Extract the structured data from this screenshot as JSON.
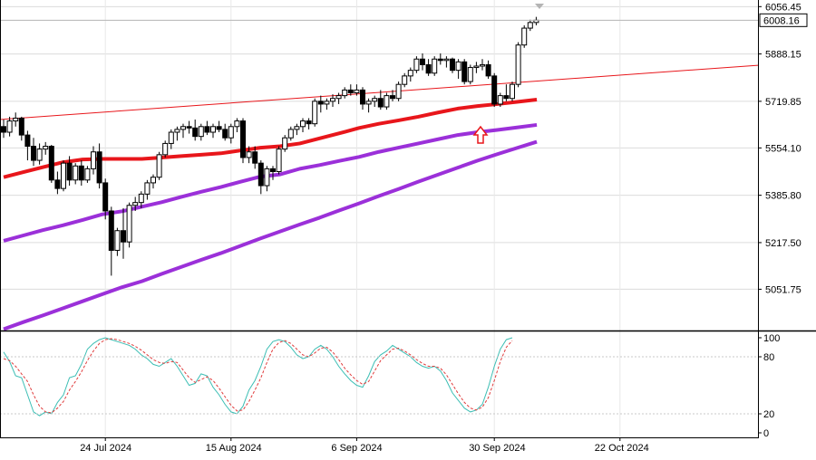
{
  "chart_data": [
    {
      "type": "candlestick",
      "ylim": [
        4905,
        6080
      ],
      "y_ticks": [
        "6056.45",
        "5888.15",
        "5719.85",
        "5554.10",
        "5385.80",
        "5217.50",
        "5051.75"
      ],
      "y_tick_values": [
        6056.45,
        5888.15,
        5719.85,
        5554.1,
        5385.8,
        5217.5,
        5051.75
      ],
      "current_price_label": "6008.16",
      "current_price": 6008.16,
      "x_labels": [
        "24 Jul 2024",
        "15 Aug 2024",
        "6 Sep 2024",
        "30 Sep 2024",
        "22 Oct 2024"
      ],
      "x_label_bar_index": [
        17,
        38,
        59,
        82,
        103
      ],
      "candles_ohlc": [
        [
          5630,
          5655,
          5590,
          5610
        ],
        [
          5610,
          5665,
          5595,
          5650
        ],
        [
          5650,
          5680,
          5630,
          5660
        ],
        [
          5660,
          5665,
          5580,
          5600
        ],
        [
          5600,
          5615,
          5510,
          5560
        ],
        [
          5560,
          5590,
          5490,
          5510
        ],
        [
          5510,
          5570,
          5495,
          5550
        ],
        [
          5550,
          5575,
          5530,
          5560
        ],
        [
          5560,
          5565,
          5430,
          5440
        ],
        [
          5440,
          5470,
          5390,
          5410
        ],
        [
          5410,
          5510,
          5400,
          5500
        ],
        [
          5500,
          5525,
          5420,
          5440
        ],
        [
          5440,
          5500,
          5425,
          5490
        ],
        [
          5490,
          5510,
          5420,
          5440
        ],
        [
          5440,
          5490,
          5430,
          5480
        ],
        [
          5480,
          5560,
          5460,
          5540
        ],
        [
          5540,
          5570,
          5410,
          5430
        ],
        [
          5430,
          5445,
          5300,
          5330
        ],
        [
          5330,
          5345,
          5100,
          5190
        ],
        [
          5190,
          5270,
          5170,
          5260
        ],
        [
          5260,
          5340,
          5160,
          5220
        ],
        [
          5220,
          5360,
          5200,
          5350
        ],
        [
          5350,
          5380,
          5330,
          5360
        ],
        [
          5360,
          5400,
          5340,
          5390
        ],
        [
          5390,
          5440,
          5370,
          5430
        ],
        [
          5430,
          5460,
          5410,
          5450
        ],
        [
          5450,
          5540,
          5440,
          5530
        ],
        [
          5530,
          5580,
          5520,
          5570
        ],
        [
          5570,
          5620,
          5550,
          5610
        ],
        [
          5610,
          5630,
          5580,
          5620
        ],
        [
          5620,
          5640,
          5590,
          5630
        ],
        [
          5630,
          5650,
          5605,
          5625
        ],
        [
          5625,
          5655,
          5580,
          5595
        ],
        [
          5595,
          5640,
          5580,
          5630
        ],
        [
          5630,
          5650,
          5600,
          5610
        ],
        [
          5610,
          5640,
          5590,
          5630
        ],
        [
          5630,
          5650,
          5610,
          5620
        ],
        [
          5620,
          5640,
          5580,
          5590
        ],
        [
          5590,
          5640,
          5570,
          5630
        ],
        [
          5630,
          5660,
          5610,
          5650
        ],
        [
          5650,
          5660,
          5500,
          5520
        ],
        [
          5520,
          5560,
          5500,
          5540
        ],
        [
          5540,
          5560,
          5480,
          5500
        ],
        [
          5500,
          5510,
          5390,
          5420
        ],
        [
          5420,
          5490,
          5400,
          5480
        ],
        [
          5480,
          5490,
          5440,
          5470
        ],
        [
          5470,
          5560,
          5460,
          5550
        ],
        [
          5550,
          5600,
          5540,
          5590
        ],
        [
          5590,
          5630,
          5580,
          5620
        ],
        [
          5620,
          5640,
          5600,
          5630
        ],
        [
          5630,
          5660,
          5610,
          5650
        ],
        [
          5650,
          5660,
          5620,
          5640
        ],
        [
          5640,
          5730,
          5630,
          5720
        ],
        [
          5720,
          5740,
          5680,
          5710
        ],
        [
          5710,
          5730,
          5690,
          5720
        ],
        [
          5720,
          5745,
          5700,
          5730
        ],
        [
          5730,
          5750,
          5710,
          5740
        ],
        [
          5740,
          5770,
          5730,
          5760
        ],
        [
          5760,
          5780,
          5740,
          5750
        ],
        [
          5750,
          5780,
          5740,
          5760
        ],
        [
          5760,
          5770,
          5690,
          5710
        ],
        [
          5710,
          5730,
          5680,
          5720
        ],
        [
          5720,
          5740,
          5700,
          5730
        ],
        [
          5730,
          5760,
          5690,
          5700
        ],
        [
          5700,
          5750,
          5690,
          5740
        ],
        [
          5740,
          5760,
          5720,
          5730
        ],
        [
          5730,
          5790,
          5720,
          5780
        ],
        [
          5780,
          5820,
          5770,
          5810
        ],
        [
          5810,
          5840,
          5790,
          5830
        ],
        [
          5830,
          5880,
          5820,
          5870
        ],
        [
          5870,
          5890,
          5830,
          5850
        ],
        [
          5850,
          5870,
          5810,
          5820
        ],
        [
          5820,
          5880,
          5810,
          5870
        ],
        [
          5870,
          5890,
          5850,
          5865
        ],
        [
          5865,
          5880,
          5840,
          5870
        ],
        [
          5870,
          5875,
          5820,
          5830
        ],
        [
          5830,
          5870,
          5800,
          5860
        ],
        [
          5860,
          5870,
          5780,
          5790
        ],
        [
          5790,
          5850,
          5780,
          5840
        ],
        [
          5840,
          5860,
          5820,
          5845
        ],
        [
          5845,
          5870,
          5830,
          5850
        ],
        [
          5850,
          5865,
          5800,
          5810
        ],
        [
          5810,
          5820,
          5700,
          5710
        ],
        [
          5710,
          5750,
          5700,
          5740
        ],
        [
          5740,
          5780,
          5720,
          5730
        ],
        [
          5730,
          5790,
          5720,
          5780
        ],
        [
          5780,
          5930,
          5770,
          5920
        ],
        [
          5920,
          5990,
          5910,
          5980
        ],
        [
          5980,
          6010,
          5970,
          6000
        ],
        [
          6000,
          6020,
          5990,
          6008.16
        ]
      ],
      "ma_fast_red": [
        5450,
        5468,
        5486,
        5503,
        5513,
        5515,
        5515,
        5515,
        5520,
        5525,
        5530,
        5535,
        5545,
        5555,
        5560,
        5570,
        5588,
        5606,
        5625,
        5640,
        5652,
        5665,
        5680,
        5694,
        5703,
        5710,
        5718,
        5726
      ],
      "ma_mid_purple": [
        5224,
        5243,
        5262,
        5279,
        5298,
        5318,
        5329,
        5345,
        5361,
        5380,
        5398,
        5415,
        5434,
        5452,
        5460,
        5480,
        5493,
        5508,
        5522,
        5540,
        5555,
        5570,
        5585,
        5600,
        5610,
        5618,
        5627,
        5636
      ],
      "ma_slow_purple": [
        4910,
        4935,
        4959,
        4984,
        5009,
        5034,
        5059,
        5080,
        5106,
        5131,
        5156,
        5180,
        5206,
        5232,
        5257,
        5282,
        5306,
        5332,
        5357,
        5383,
        5408,
        5434,
        5459,
        5484,
        5509,
        5532,
        5554,
        5576
      ],
      "ma_points_per_bar": 3.3,
      "trendline": {
        "start_value": 5655,
        "end_value": 5848
      },
      "marker": "up-arrow",
      "marker_at_value": 5655
    },
    {
      "type": "line",
      "indicator": "stochastic",
      "ylim": [
        0,
        100
      ],
      "y_ticks": [
        "100",
        "80",
        "20",
        "0"
      ],
      "y_tick_values": [
        100,
        80,
        20,
        0
      ],
      "series": [
        {
          "values": [
            85,
            75,
            60,
            58,
            40,
            22,
            18,
            22,
            20,
            32,
            40,
            58,
            60,
            72,
            88,
            94,
            98,
            100,
            98,
            96,
            94,
            92,
            88,
            82,
            78,
            72,
            70,
            74,
            78,
            70,
            60,
            50,
            52,
            62,
            60,
            48,
            40,
            30,
            22,
            20,
            28,
            45,
            55,
            70,
            88,
            96,
            98,
            96,
            90,
            82,
            78,
            80,
            88,
            92,
            88,
            80,
            70,
            62,
            55,
            50,
            48,
            60,
            75,
            82,
            86,
            92,
            88,
            84,
            80,
            74,
            70,
            68,
            70,
            65,
            55,
            42,
            34,
            26,
            22,
            24,
            30,
            48,
            70,
            88,
            98,
            100
          ],
          "color": "#3cbeb4"
        },
        {
          "values": [
            78,
            76,
            70,
            62,
            54,
            40,
            28,
            22,
            21,
            26,
            33,
            45,
            54,
            64,
            76,
            86,
            94,
            98,
            99,
            98,
            96,
            94,
            91,
            87,
            82,
            77,
            74,
            73,
            75,
            74,
            66,
            58,
            53,
            56,
            59,
            55,
            47,
            38,
            29,
            23,
            24,
            33,
            45,
            58,
            74,
            88,
            95,
            97,
            94,
            88,
            82,
            80,
            84,
            89,
            90,
            85,
            77,
            68,
            61,
            55,
            51,
            54,
            65,
            76,
            82,
            88,
            89,
            86,
            82,
            77,
            73,
            70,
            70,
            68,
            61,
            51,
            41,
            32,
            26,
            24,
            27,
            37,
            55,
            75,
            90,
            97
          ],
          "color": "#e03c3c",
          "dashed": true
        }
      ]
    }
  ]
}
